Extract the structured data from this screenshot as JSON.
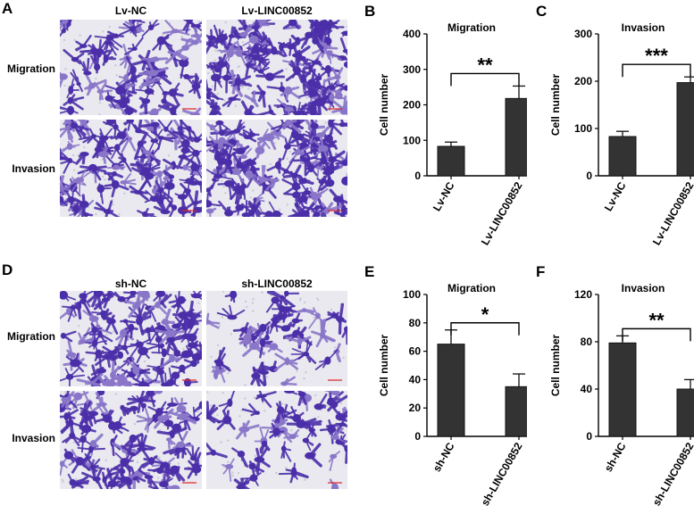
{
  "panels": [
    {
      "key": "A",
      "label": "A",
      "col_titles": [
        "Lv-NC",
        "Lv-LINC00852"
      ],
      "row_titles": [
        "Migration",
        "Invasion"
      ]
    },
    {
      "key": "D",
      "label": "D",
      "col_titles": [
        "sh-NC",
        "sh-LINC00852"
      ],
      "row_titles": [
        "Migration",
        "Invasion"
      ]
    }
  ],
  "colors": {
    "stain": "#4b2fa8",
    "stain_light": "#8a76c9",
    "background": "#e9e9ef",
    "bar": "#333333"
  },
  "chart_data": [
    {
      "key": "B",
      "label": "B",
      "type": "bar",
      "title": "Migration",
      "ylabel": "Cell number",
      "categories": [
        "Lv-NC",
        "Lv-LINC00852"
      ],
      "values": [
        83,
        218
      ],
      "errors": [
        12,
        35
      ],
      "ylim": [
        0,
        400
      ],
      "yticks": [
        0,
        100,
        200,
        300,
        400
      ],
      "significance": "**"
    },
    {
      "key": "C",
      "label": "C",
      "type": "bar",
      "title": "Invasion",
      "ylabel": "Cell number",
      "categories": [
        "Lv-NC",
        "Lv-LINC00852"
      ],
      "values": [
        83,
        197
      ],
      "errors": [
        11,
        12
      ],
      "ylim": [
        0,
        300
      ],
      "yticks": [
        0,
        100,
        200,
        300
      ],
      "significance": "***"
    },
    {
      "key": "E",
      "label": "E",
      "type": "bar",
      "title": "Migration",
      "ylabel": "Cell number",
      "categories": [
        "sh-NC",
        "sh-LINC00852"
      ],
      "values": [
        65,
        35
      ],
      "errors": [
        10,
        9
      ],
      "ylim": [
        0,
        100
      ],
      "yticks": [
        0,
        20,
        40,
        60,
        80,
        100
      ],
      "significance": "*"
    },
    {
      "key": "F",
      "label": "F",
      "type": "bar",
      "title": "Invasion",
      "ylabel": "Cell number",
      "categories": [
        "sh-NC",
        "sh-LINC00852"
      ],
      "values": [
        79,
        40
      ],
      "errors": [
        6,
        8
      ],
      "ylim": [
        0,
        120
      ],
      "yticks": [
        0,
        40,
        80,
        120
      ],
      "significance": "**"
    }
  ]
}
